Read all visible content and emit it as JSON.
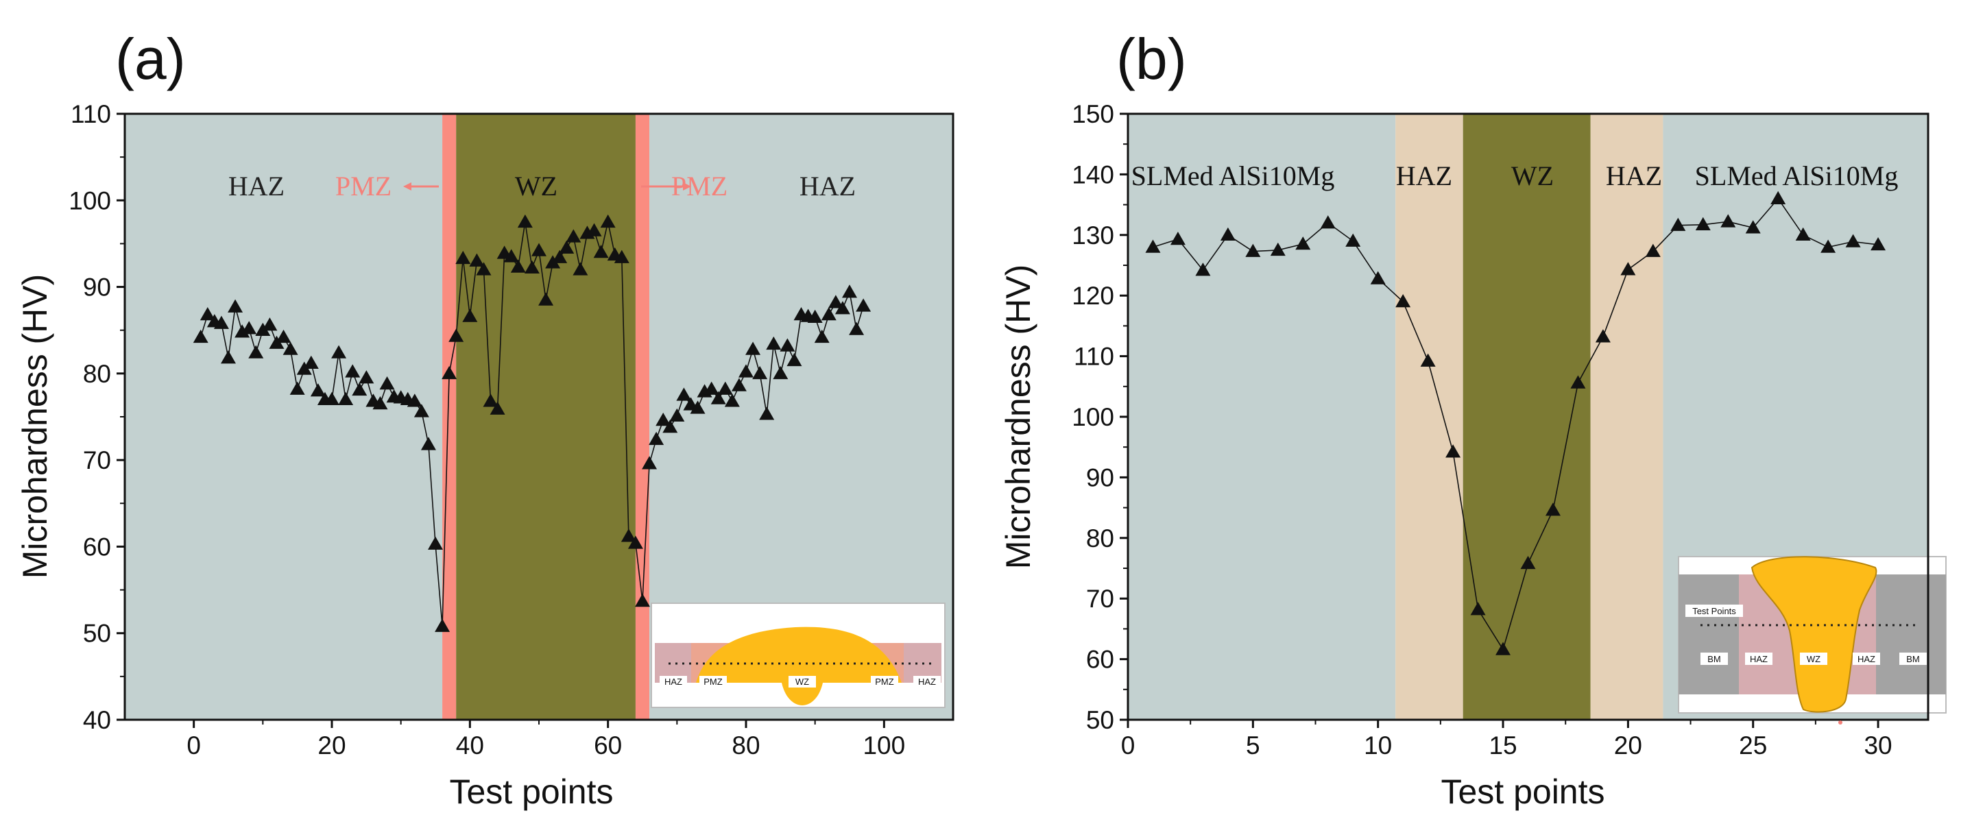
{
  "figure": {
    "panels": [
      "(a)",
      "(b)"
    ],
    "colors": {
      "haz_a_bg": "#c3d1d0",
      "wz_a_bg": "#7c7a33",
      "pmz_band": "#fa8c80",
      "pmz_text": "#f4817a",
      "bm_b_bg": "#c3d1d0",
      "haz_b_bg": "#e5d1b7",
      "wz_b_bg": "#7c7a33",
      "weld_bead": "#fdbb18",
      "inset_haz": "#d6acb0",
      "inset_bm": "#a3a3a3",
      "marker": "#111111"
    }
  },
  "chart_data": [
    {
      "panel": "(a)",
      "type": "scatter",
      "title": "",
      "xlabel": "Test points",
      "ylabel": "Microhardness (HV)",
      "xlim": [
        -10,
        110
      ],
      "ylim": [
        40,
        110
      ],
      "xticks": [
        0,
        20,
        40,
        60,
        80,
        100
      ],
      "yticks": [
        40,
        50,
        60,
        70,
        80,
        90,
        100,
        110
      ],
      "zones": [
        {
          "name": "HAZ",
          "x0": -10,
          "x1": 36,
          "color": "#c3d1d0"
        },
        {
          "name": "PMZ",
          "x0": 36,
          "x1": 38,
          "color": "#fa8c80"
        },
        {
          "name": "WZ",
          "x0": 38,
          "x1": 64,
          "color": "#7c7a33"
        },
        {
          "name": "PMZ",
          "x0": 64,
          "x1": 66,
          "color": "#fa8c80"
        },
        {
          "name": "HAZ",
          "x0": 66,
          "x1": 110,
          "color": "#c3d1d0"
        }
      ],
      "zone_labels": [
        "HAZ",
        "PMZ",
        "WZ",
        "PMZ",
        "HAZ"
      ],
      "inset_labels": [
        "HAZ",
        "PMZ",
        "WZ",
        "PMZ",
        "HAZ"
      ],
      "x": [
        1,
        2,
        3,
        4,
        5,
        6,
        7,
        8,
        9,
        10,
        11,
        12,
        13,
        14,
        15,
        16,
        17,
        18,
        19,
        20,
        21,
        22,
        23,
        24,
        25,
        26,
        27,
        28,
        29,
        30,
        31,
        32,
        33,
        34,
        35,
        36,
        37,
        38,
        39,
        40,
        41,
        42,
        43,
        44,
        45,
        46,
        47,
        48,
        49,
        50,
        51,
        52,
        53,
        54,
        55,
        56,
        57,
        58,
        59,
        60,
        61,
        62,
        63,
        64,
        65,
        66,
        67,
        68,
        69,
        70,
        71,
        72,
        73,
        74,
        75,
        76,
        77,
        78,
        79,
        80,
        81,
        82,
        83,
        84,
        85,
        86,
        87,
        88,
        89,
        90,
        91,
        92,
        93,
        94,
        95,
        96,
        97
      ],
      "y": [
        84.2,
        86.8,
        86.0,
        85.8,
        81.8,
        87.7,
        84.8,
        85.2,
        82.4,
        85.0,
        85.6,
        83.5,
        84.2,
        82.8,
        78.2,
        80.5,
        81.2,
        78.0,
        77.0,
        77.0,
        82.4,
        77.0,
        80.2,
        78.1,
        79.5,
        76.8,
        76.5,
        78.8,
        77.3,
        77.2,
        77.0,
        76.8,
        75.6,
        71.8,
        60.3,
        50.8,
        80.0,
        84.3,
        93.3,
        86.6,
        93.0,
        92.0,
        76.8,
        75.9,
        93.9,
        93.5,
        92.3,
        97.5,
        92.2,
        94.2,
        88.5,
        92.8,
        93.4,
        94.5,
        95.8,
        92.0,
        96.2,
        96.5,
        94.0,
        97.5,
        93.7,
        93.4,
        61.2,
        60.4,
        53.7,
        69.6,
        72.4,
        74.6,
        73.8,
        75.1,
        77.5,
        76.4,
        76.0,
        77.9,
        78.2,
        77.1,
        78.2,
        76.8,
        78.6,
        80.2,
        82.8,
        80.0,
        75.3,
        83.4,
        80.0,
        83.2,
        81.5,
        86.8,
        86.6,
        86.5,
        84.2,
        86.8,
        88.2,
        87.5,
        89.4,
        85.1,
        87.8
      ]
    },
    {
      "panel": "(b)",
      "type": "line",
      "title": "",
      "xlabel": "Test points",
      "ylabel": "Microhardness (HV)",
      "xlim": [
        0,
        32
      ],
      "ylim": [
        50,
        150
      ],
      "xticks": [
        0,
        5,
        10,
        15,
        20,
        25,
        30
      ],
      "yticks": [
        50,
        60,
        70,
        80,
        90,
        100,
        110,
        120,
        130,
        140,
        150
      ],
      "zones": [
        {
          "name": "SLMed AlSi10Mg",
          "x0": 0,
          "x1": 10.7,
          "color": "#c3d1d0"
        },
        {
          "name": "HAZ",
          "x0": 10.7,
          "x1": 13.4,
          "color": "#e5d1b7"
        },
        {
          "name": "WZ",
          "x0": 13.4,
          "x1": 18.5,
          "color": "#7c7a33"
        },
        {
          "name": "HAZ",
          "x0": 18.5,
          "x1": 21.4,
          "color": "#e5d1b7"
        },
        {
          "name": "SLMed AlSi10Mg",
          "x0": 21.4,
          "x1": 32,
          "color": "#c3d1d0"
        }
      ],
      "zone_labels": [
        "SLMed AlSi10Mg",
        "HAZ",
        "WZ",
        "HAZ",
        "SLMed AlSi10Mg"
      ],
      "inset_labels": [
        "Test Points",
        "BM",
        "HAZ",
        "WZ",
        "HAZ",
        "BM"
      ],
      "x": [
        1,
        2,
        3,
        4,
        5,
        6,
        7,
        8,
        9,
        10,
        11,
        12,
        13,
        14,
        15,
        16,
        17,
        18,
        19,
        20,
        21,
        22,
        23,
        24,
        25,
        26,
        27,
        28,
        29,
        30
      ],
      "y": [
        128.0,
        129.3,
        124.2,
        130.0,
        127.3,
        127.5,
        128.5,
        132.0,
        129.0,
        122.8,
        119.0,
        109.2,
        94.2,
        68.2,
        61.6,
        75.8,
        84.6,
        105.6,
        113.2,
        124.3,
        127.3,
        131.6,
        131.7,
        132.2,
        131.2,
        136.0,
        130.0,
        128.0,
        128.9,
        128.4
      ]
    }
  ]
}
